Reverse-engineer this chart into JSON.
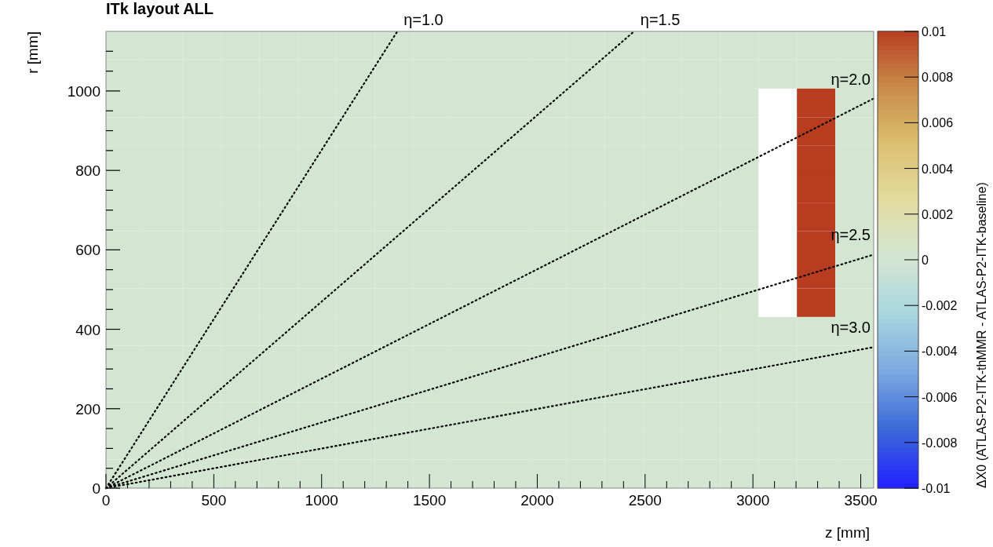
{
  "chart_data": {
    "type": "heatmap",
    "title": "ITk layout ALL",
    "xlabel": "z [mm]",
    "ylabel": "r [mm]",
    "clabel": "ΔX0 (ATLAS-P2-ITK-thMMR - ATLAS-P2-ITK-baseline)",
    "x": [
      89,
      267,
      445,
      623,
      801,
      979,
      1157,
      1335,
      1513,
      1691,
      1869,
      2047,
      2225,
      2403,
      2581,
      2759,
      2937,
      3115,
      3293,
      3471
    ],
    "y": [
      1114,
      1042,
      970,
      898,
      826,
      755,
      683,
      611,
      539,
      467,
      395,
      323,
      252,
      180,
      108,
      36
    ],
    "cells": [
      [
        0,
        0,
        0,
        0,
        0,
        0,
        0,
        0,
        0,
        0,
        0,
        0,
        0,
        0,
        0,
        0,
        0,
        0,
        0,
        0
      ],
      [
        0,
        0,
        0,
        0,
        0,
        0,
        0,
        0,
        0,
        0,
        0,
        0,
        0,
        0,
        0,
        0,
        0,
        0,
        0,
        0
      ],
      [
        0,
        0,
        0,
        0,
        0,
        0,
        0,
        0,
        0,
        0,
        0,
        0,
        0,
        0,
        0,
        0,
        0,
        null,
        0.01,
        0
      ],
      [
        0,
        0,
        0,
        0,
        0,
        0,
        0,
        0,
        0,
        0,
        0,
        0,
        0,
        0,
        0,
        0,
        0,
        null,
        0.01,
        0
      ],
      [
        0,
        0,
        0,
        0,
        0,
        0,
        0,
        0,
        0,
        0,
        0,
        0,
        0,
        0,
        0,
        0,
        0,
        null,
        0.01,
        0
      ],
      [
        0,
        0,
        0,
        0,
        0,
        0,
        0,
        0,
        0,
        0,
        0,
        0,
        0,
        0,
        0,
        0,
        0,
        null,
        0.01,
        0
      ],
      [
        0,
        0,
        0,
        0,
        0,
        0,
        0,
        0,
        0,
        0,
        0,
        0,
        0,
        0,
        0,
        0,
        0,
        null,
        0.01,
        0
      ],
      [
        0,
        0,
        0,
        0,
        0,
        0,
        0,
        0,
        0,
        0,
        0,
        0,
        0,
        0,
        0,
        0,
        0,
        null,
        0.01,
        0
      ],
      [
        0,
        0,
        0,
        0,
        0,
        0,
        0,
        0,
        0,
        0,
        0,
        0,
        0,
        0,
        0,
        0,
        0,
        null,
        0.01,
        0
      ],
      [
        0,
        0,
        0,
        0,
        0,
        0,
        0,
        0,
        0,
        0,
        0,
        0,
        0,
        0,
        0,
        0,
        0,
        null,
        0.01,
        0
      ],
      [
        0,
        0,
        0,
        0,
        0,
        0,
        0,
        0,
        0,
        0,
        0,
        0,
        0,
        0,
        0,
        0,
        0,
        0,
        0,
        0
      ],
      [
        0,
        0,
        0,
        0,
        0,
        0,
        0,
        0,
        0,
        0,
        0,
        0,
        0,
        0,
        0,
        0,
        0,
        0,
        0,
        0
      ],
      [
        0,
        0,
        0,
        0,
        0,
        0,
        0,
        0,
        0,
        0,
        0,
        0,
        0,
        0,
        0,
        0,
        0,
        0,
        0,
        0
      ],
      [
        0,
        0,
        0,
        0,
        0,
        0,
        0,
        0,
        0,
        0,
        0,
        0,
        0,
        0,
        0,
        0,
        0,
        0,
        0,
        0
      ],
      [
        0,
        0,
        0,
        0,
        0,
        0,
        0,
        0,
        0,
        0,
        0,
        0,
        0,
        0,
        0,
        0,
        0,
        0,
        0,
        0
      ],
      [
        0,
        0,
        0,
        0,
        0,
        0,
        0,
        0,
        0,
        0,
        0,
        0,
        0,
        0,
        0,
        0,
        0,
        0,
        0,
        0
      ]
    ],
    "clim": [
      -0.01,
      0.01
    ],
    "cticks": [
      -0.01,
      -0.008,
      -0.006,
      -0.004,
      -0.002,
      0,
      0.002,
      0.004,
      0.006,
      0.008,
      0.01
    ],
    "colors": [
      "#2222ff",
      "#3c6ad8",
      "#7aa8e0",
      "#a8d6e0",
      "#d3e6d2",
      "#e2dca0",
      "#dcc070",
      "#c88a48",
      "#b83c20"
    ],
    "xlim": [
      0,
      3560
    ],
    "ylim": [
      0,
      1150
    ],
    "xticks": [
      0,
      {
        "value": 100,
        "label": null
      },
      {
        "value": 200,
        "label": null
      },
      {
        "value": 300,
        "label": null
      },
      {
        "value": 400,
        "label": null
      },
      500,
      {
        "value": 600,
        "label": null
      },
      {
        "value": 700,
        "label": null
      },
      {
        "value": 800,
        "label": null
      },
      {
        "value": 900,
        "label": null
      },
      1000,
      {
        "value": 1100,
        "label": null
      },
      {
        "value": 1200,
        "label": null
      },
      {
        "value": 1300,
        "label": null
      },
      {
        "value": 1400,
        "label": null
      },
      1500,
      {
        "value": 1600,
        "label": null
      },
      {
        "value": 1700,
        "label": null
      },
      {
        "value": 1800,
        "label": null
      },
      {
        "value": 1900,
        "label": null
      },
      2000,
      {
        "value": 2100,
        "label": null
      },
      {
        "value": 2200,
        "label": null
      },
      {
        "value": 2300,
        "label": null
      },
      {
        "value": 2400,
        "label": null
      },
      2500,
      {
        "value": 2600,
        "label": null
      },
      {
        "value": 2700,
        "label": null
      },
      {
        "value": 2800,
        "label": null
      },
      {
        "value": 2900,
        "label": null
      },
      3000,
      {
        "value": 3100,
        "label": null
      },
      {
        "value": 3200,
        "label": null
      },
      {
        "value": 3300,
        "label": null
      },
      {
        "value": 3400,
        "label": null
      },
      3500
    ],
    "yticks": [
      0,
      {
        "value": 50,
        "label": null
      },
      {
        "value": 100,
        "label": null
      },
      {
        "value": 150,
        "label": null
      },
      200,
      {
        "value": 250,
        "label": null
      },
      {
        "value": 300,
        "label": null
      },
      {
        "value": 350,
        "label": null
      },
      400,
      {
        "value": 450,
        "label": null
      },
      {
        "value": 500,
        "label": null
      },
      {
        "value": 550,
        "label": null
      },
      600,
      {
        "value": 650,
        "label": null
      },
      {
        "value": 700,
        "label": null
      },
      {
        "value": 750,
        "label": null
      },
      800,
      {
        "value": 850,
        "label": null
      },
      {
        "value": 900,
        "label": null
      },
      {
        "value": 950,
        "label": null
      },
      1000,
      {
        "value": 1050,
        "label": null
      },
      {
        "value": 1100,
        "label": null
      }
    ],
    "line_style": "dotted",
    "series": [
      {
        "type": "line",
        "name": "η=1.0",
        "color": "#000000",
        "x": [
          0,
          1351
        ],
        "values": [
          0,
          1150
        ]
      },
      {
        "type": "line",
        "name": "η=1.5",
        "color": "#000000",
        "x": [
          0,
          2449
        ],
        "values": [
          0,
          1150
        ]
      },
      {
        "type": "line",
        "name": "η=2.0",
        "color": "#000000",
        "x": [
          0,
          3560
        ],
        "values": [
          0,
          981
        ]
      },
      {
        "type": "line",
        "name": "η=2.5",
        "color": "#000000",
        "x": [
          0,
          3560
        ],
        "values": [
          0,
          588
        ]
      },
      {
        "type": "line",
        "name": "η=3.0",
        "color": "#000000",
        "x": [
          0,
          3560
        ],
        "values": [
          0,
          355
        ]
      }
    ]
  }
}
